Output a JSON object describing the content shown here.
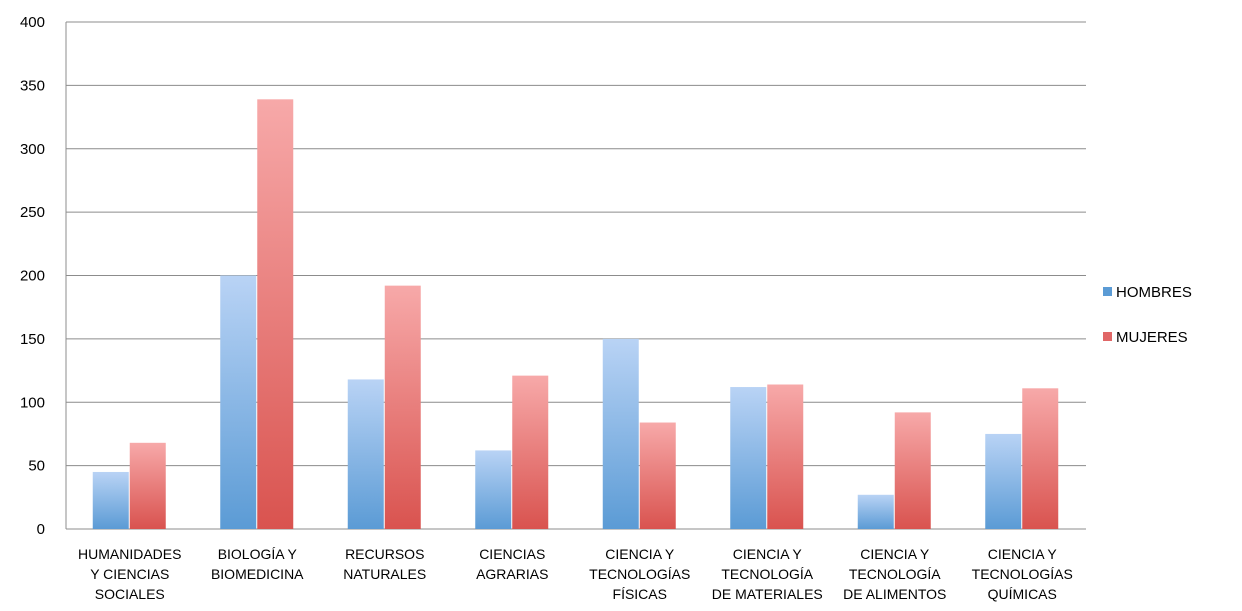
{
  "chart_data": {
    "type": "bar",
    "title": "",
    "xlabel": "",
    "ylabel": "",
    "ylim": [
      0,
      400
    ],
    "yticks": [
      0,
      50,
      100,
      150,
      200,
      250,
      300,
      350,
      400
    ],
    "grid": true,
    "legend_position": "right",
    "categories": [
      [
        "HUMANIDADES",
        "Y CIENCIAS",
        "SOCIALES"
      ],
      [
        "BIOLOGÍA Y",
        "BIOMEDICINA"
      ],
      [
        "RECURSOS",
        "NATURALES"
      ],
      [
        "CIENCIAS",
        "AGRARIAS"
      ],
      [
        "CIENCIA Y",
        "TECNOLOGÍAS",
        "FÍSICAS"
      ],
      [
        "CIENCIA Y",
        "TECNOLOGÍA",
        "DE MATERIALES"
      ],
      [
        "CIENCIA Y",
        "TECNOLOGÍA",
        "DE ALIMENTOS"
      ],
      [
        "CIENCIA Y",
        "TECNOLOGÍAS",
        "QUÍMICAS"
      ]
    ],
    "series": [
      {
        "name": "HOMBRES",
        "color": "#5b9bd5",
        "values": [
          45,
          200,
          118,
          62,
          150,
          112,
          27,
          75
        ]
      },
      {
        "name": "MUJERES",
        "color": "#e06666",
        "values": [
          68,
          339,
          192,
          121,
          84,
          114,
          92,
          111
        ]
      }
    ]
  }
}
